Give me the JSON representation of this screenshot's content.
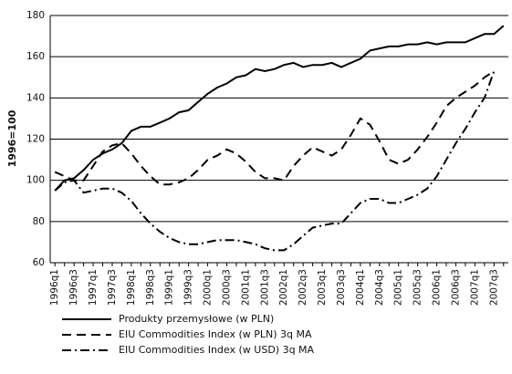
{
  "chart_data": {
    "type": "line",
    "y_label": "1996=100",
    "categories": [
      "1996q1",
      null,
      "1996q3",
      null,
      "1997q1",
      null,
      "1997q3",
      null,
      "1998q1",
      null,
      "1998q3",
      null,
      "1999q1",
      null,
      "1999q3",
      null,
      "2000q1",
      null,
      "2000q3",
      null,
      "2001q1",
      null,
      "2001q3",
      null,
      "2002q1",
      null,
      "2002q3",
      null,
      "2003q1",
      null,
      "2003q3",
      null,
      "2004q1",
      null,
      "2004q3",
      null,
      "2005q1",
      null,
      "2005q3",
      null,
      "2006q1",
      null,
      "2006q3",
      null,
      "2007q1",
      null,
      "2007q3",
      null
    ],
    "series": [
      {
        "name": "Produkty przemysłowe (w PLN)",
        "color": "#000000",
        "style": "solid",
        "values": [
          95,
          100,
          101,
          105,
          110,
          113,
          115,
          118,
          124,
          126,
          126,
          128,
          130,
          133,
          134,
          138,
          142,
          145,
          147,
          150,
          151,
          154,
          153,
          154,
          156,
          157,
          155,
          156,
          156,
          157,
          155,
          157,
          159,
          163,
          164,
          165,
          165,
          166,
          166,
          167,
          166,
          167,
          167,
          167,
          169,
          171,
          171,
          175
        ]
      },
      {
        "name": "EIU Commodities Index  (w PLN) 3q MA",
        "color": "#000000",
        "style": "dashed",
        "values": [
          104,
          102,
          100,
          100,
          107,
          114,
          117,
          118,
          113,
          107,
          102,
          98,
          98,
          99,
          101,
          105,
          110,
          112,
          115,
          113,
          109,
          104,
          101,
          101,
          100,
          107,
          112,
          116,
          114,
          112,
          115,
          122,
          130,
          127,
          119,
          110,
          108,
          110,
          115,
          121,
          128,
          136,
          140,
          143,
          146,
          150,
          153,
          null
        ]
      },
      {
        "name": "EIU Commodities Index  (w USD) 3q MA",
        "color": "#000000",
        "style": "dashdot",
        "values": [
          95,
          99,
          100,
          94,
          95,
          96,
          96,
          94,
          90,
          84,
          79,
          75,
          72,
          70,
          69,
          69,
          70,
          71,
          71,
          71,
          70,
          69,
          67,
          66,
          66,
          69,
          73,
          77,
          78,
          79,
          79,
          84,
          89,
          91,
          91,
          89,
          89,
          91,
          93,
          96,
          102,
          110,
          118,
          125,
          133,
          140,
          153,
          null
        ]
      }
    ],
    "ylim": [
      60,
      180
    ],
    "yticks": [
      60,
      80,
      100,
      120,
      140,
      160,
      180
    ],
    "grid": true
  }
}
